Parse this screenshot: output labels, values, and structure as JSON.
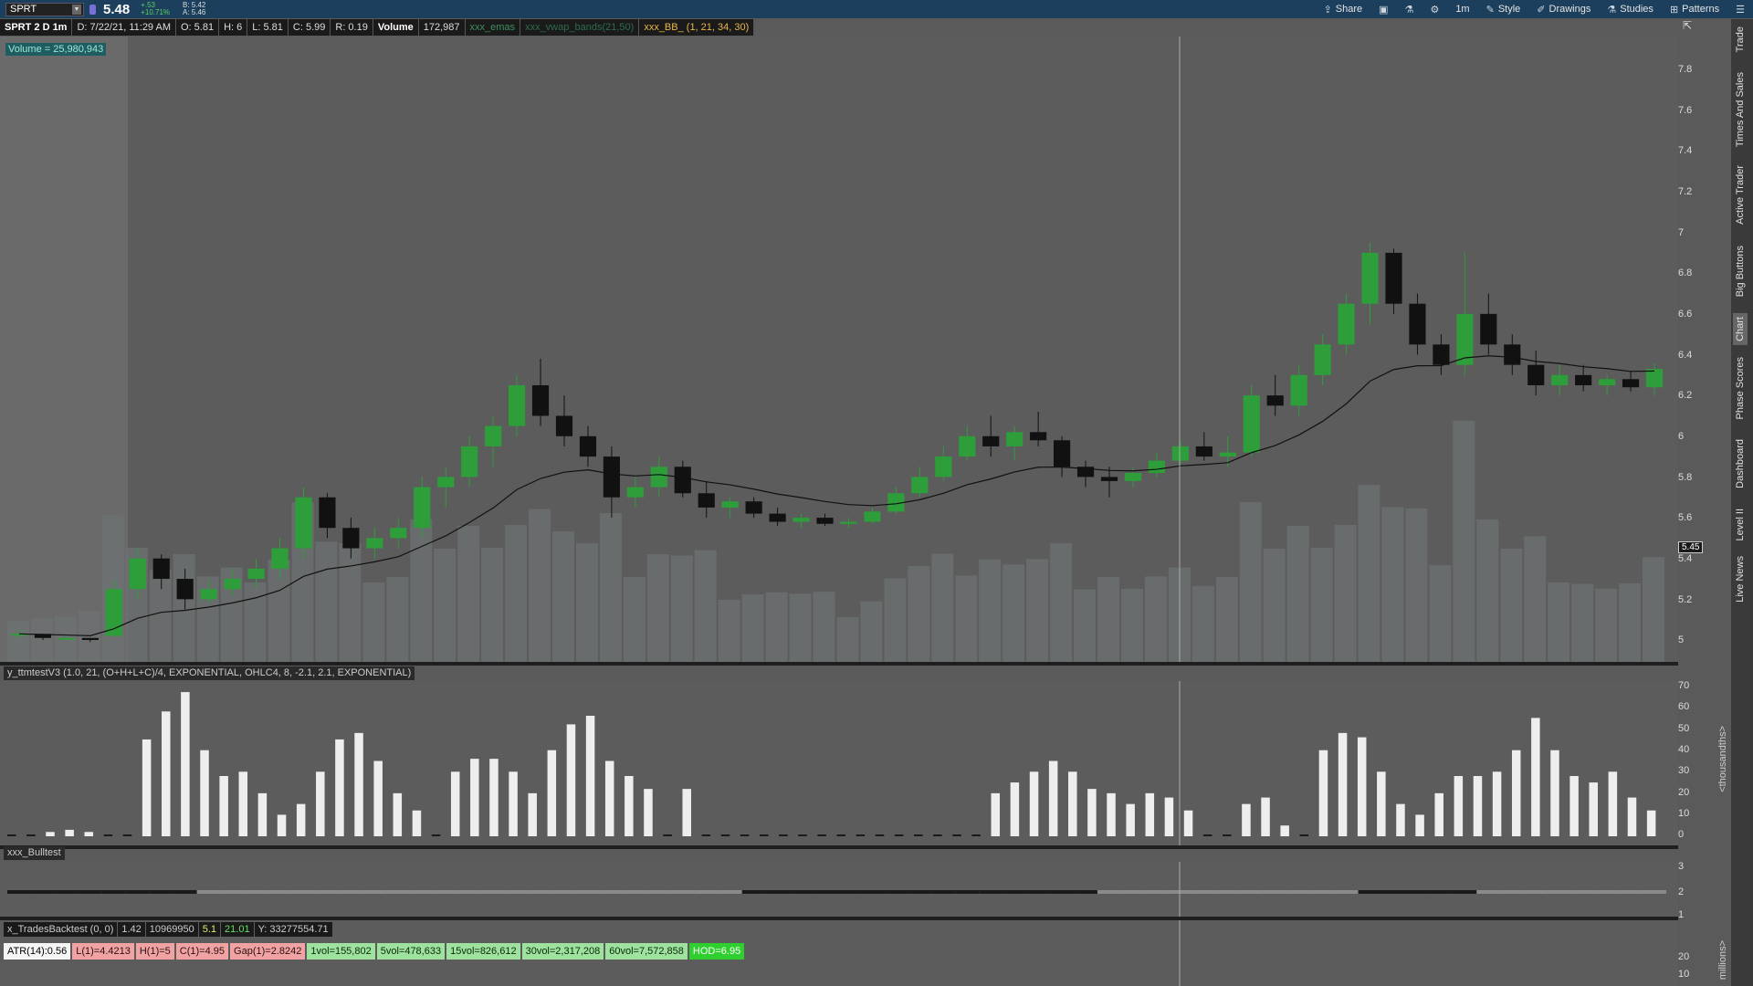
{
  "topbar": {
    "symbol": "SPRT",
    "last_price": "5.48",
    "change_abs": "+.53",
    "change_pct": "+10.71%",
    "bid": "B: 5.42",
    "ask": "A: 5.46",
    "buttons": {
      "share": "Share",
      "timeframe": "1m",
      "style": "Style",
      "drawings": "Drawings",
      "studies": "Studies",
      "patterns": "Patterns"
    }
  },
  "infobar": {
    "title": "SPRT 2 D 1m",
    "date": "D: 7/22/21, 11:29 AM",
    "open": "O: 5.81",
    "high": "H: 6",
    "low": "L: 5.81",
    "close": "C: 5.99",
    "range": "R: 0.19",
    "volume_label": "Volume",
    "volume_value": "172,987",
    "study1": "xxx_emas",
    "study2": "xxx_vwap_bands(21,50)",
    "study3": "xxx_BB_ (1, 21, 34, 30)"
  },
  "volume_box": "Volume = 25,980,943",
  "sidebar_tabs": [
    "Trade",
    "Times And Sales",
    "Active Trader",
    "Big Buttons",
    "Chart",
    "Phase Scores",
    "Dashboard",
    "Level II",
    "Live News"
  ],
  "price_axis": [
    "7.8",
    "7.6",
    "7.4",
    "7.2",
    "7",
    "6.8",
    "6.6",
    "6.4",
    "6.2",
    "6",
    "5.8",
    "5.6",
    "5.4",
    "5.2",
    "5"
  ],
  "current_price_label": "5.45",
  "osc_panel": {
    "header": "y_ttmtestV3 (1.0, 21, (O+H+L+C)/4, EXPONENTIAL, OHLC4, 8, -2.1, 2.1, EXPONENTIAL)",
    "axis": [
      "70",
      "60",
      "50",
      "40",
      "30",
      "20",
      "10",
      "0"
    ],
    "unit": "<thousandths>"
  },
  "bull_panel": {
    "header": "xxx_Bulltest",
    "axis": [
      "3",
      "2",
      "1"
    ]
  },
  "backtest": {
    "header": "x_TradesBacktest (0, 0)",
    "v1": "1.42",
    "v2": "10969950",
    "v3": "5.1",
    "v4": "21.01",
    "v5": "Y: 33277554.71"
  },
  "stats": {
    "atr": "ATR(14):0.56",
    "l1": "L(1)=4.4213",
    "h1": "H(1)=5",
    "c1": "C(1)=4.95",
    "gap": "Gap(1)=2.8242",
    "vol1": "1vol=155,802",
    "vol5": "5vol=478,633",
    "vol15": "15vol=826,612",
    "vol30": "30vol=2,317,208",
    "vol60": "60vol=7,572,858",
    "hod": "HOD=6.95"
  },
  "vol_panel": {
    "axis": [
      "20",
      "10"
    ],
    "unit": "millions>"
  },
  "chart_data": {
    "type": "candlestick",
    "ylim": [
      5.0,
      7.8
    ],
    "candles": [
      [
        5.03,
        5.05,
        5.01,
        5.03
      ],
      [
        5.03,
        5.03,
        5.0,
        5.01
      ],
      [
        5.01,
        5.02,
        5.0,
        5.01
      ],
      [
        5.01,
        5.01,
        4.99,
        5.0
      ],
      [
        5.02,
        5.3,
        5.02,
        5.25
      ],
      [
        5.25,
        5.45,
        5.2,
        5.4
      ],
      [
        5.4,
        5.42,
        5.25,
        5.3
      ],
      [
        5.3,
        5.35,
        5.15,
        5.2
      ],
      [
        5.2,
        5.3,
        5.18,
        5.25
      ],
      [
        5.25,
        5.35,
        5.22,
        5.3
      ],
      [
        5.3,
        5.4,
        5.25,
        5.35
      ],
      [
        5.35,
        5.5,
        5.3,
        5.45
      ],
      [
        5.45,
        5.75,
        5.4,
        5.7
      ],
      [
        5.7,
        5.72,
        5.5,
        5.55
      ],
      [
        5.55,
        5.6,
        5.4,
        5.45
      ],
      [
        5.45,
        5.55,
        5.4,
        5.5
      ],
      [
        5.5,
        5.6,
        5.45,
        5.55
      ],
      [
        5.55,
        5.8,
        5.5,
        5.75
      ],
      [
        5.75,
        5.85,
        5.65,
        5.8
      ],
      [
        5.8,
        6.0,
        5.75,
        5.95
      ],
      [
        5.95,
        6.1,
        5.85,
        6.05
      ],
      [
        6.05,
        6.3,
        6.0,
        6.25
      ],
      [
        6.25,
        6.38,
        6.05,
        6.1
      ],
      [
        6.1,
        6.2,
        5.95,
        6.0
      ],
      [
        6.0,
        6.05,
        5.85,
        5.9
      ],
      [
        5.9,
        5.95,
        5.6,
        5.7
      ],
      [
        5.7,
        5.8,
        5.65,
        5.75
      ],
      [
        5.75,
        5.9,
        5.7,
        5.85
      ],
      [
        5.85,
        5.88,
        5.7,
        5.72
      ],
      [
        5.72,
        5.78,
        5.6,
        5.65
      ],
      [
        5.65,
        5.7,
        5.6,
        5.68
      ],
      [
        5.68,
        5.7,
        5.6,
        5.62
      ],
      [
        5.62,
        5.65,
        5.56,
        5.58
      ],
      [
        5.58,
        5.62,
        5.55,
        5.6
      ],
      [
        5.6,
        5.62,
        5.56,
        5.57
      ],
      [
        5.57,
        5.6,
        5.55,
        5.58
      ],
      [
        5.58,
        5.65,
        5.57,
        5.63
      ],
      [
        5.63,
        5.75,
        5.62,
        5.72
      ],
      [
        5.72,
        5.85,
        5.7,
        5.8
      ],
      [
        5.8,
        5.95,
        5.78,
        5.9
      ],
      [
        5.9,
        6.05,
        5.88,
        6.0
      ],
      [
        6.0,
        6.1,
        5.9,
        5.95
      ],
      [
        5.95,
        6.05,
        5.88,
        6.02
      ],
      [
        6.02,
        6.12,
        5.95,
        5.98
      ],
      [
        5.98,
        6.0,
        5.8,
        5.85
      ],
      [
        5.85,
        5.88,
        5.75,
        5.8
      ],
      [
        5.8,
        5.85,
        5.7,
        5.78
      ],
      [
        5.78,
        5.85,
        5.75,
        5.82
      ],
      [
        5.82,
        5.92,
        5.8,
        5.88
      ],
      [
        5.88,
        5.98,
        5.85,
        5.95
      ],
      [
        5.95,
        6.02,
        5.88,
        5.9
      ],
      [
        5.9,
        6.0,
        5.85,
        5.92
      ],
      [
        5.92,
        6.25,
        5.9,
        6.2
      ],
      [
        6.2,
        6.3,
        6.1,
        6.15
      ],
      [
        6.15,
        6.35,
        6.1,
        6.3
      ],
      [
        6.3,
        6.5,
        6.25,
        6.45
      ],
      [
        6.45,
        6.7,
        6.4,
        6.65
      ],
      [
        6.65,
        6.95,
        6.55,
        6.9
      ],
      [
        6.9,
        6.92,
        6.6,
        6.65
      ],
      [
        6.65,
        6.7,
        6.4,
        6.45
      ],
      [
        6.45,
        6.5,
        6.3,
        6.35
      ],
      [
        6.35,
        6.9,
        6.3,
        6.6
      ],
      [
        6.6,
        6.7,
        6.4,
        6.45
      ],
      [
        6.45,
        6.5,
        6.3,
        6.35
      ],
      [
        6.35,
        6.42,
        6.2,
        6.25
      ],
      [
        6.25,
        6.35,
        6.2,
        6.3
      ],
      [
        6.3,
        6.35,
        6.22,
        6.25
      ],
      [
        6.25,
        6.3,
        6.2,
        6.28
      ],
      [
        6.28,
        6.32,
        6.22,
        6.24
      ],
      [
        6.24,
        6.36,
        6.2,
        6.33
      ]
    ],
    "osc_values": [
      0,
      0,
      2,
      3,
      2,
      0,
      0,
      45,
      58,
      67,
      40,
      28,
      30,
      20,
      10,
      15,
      30,
      45,
      48,
      35,
      20,
      12,
      0,
      30,
      36,
      36,
      30,
      20,
      40,
      52,
      56,
      35,
      28,
      22,
      0,
      22,
      0,
      0,
      0,
      0,
      0,
      0,
      0,
      0,
      0,
      0,
      0,
      0,
      0,
      0,
      0,
      20,
      25,
      30,
      35,
      30,
      22,
      20,
      15,
      20,
      18,
      12,
      0,
      0,
      15,
      18,
      5,
      0,
      40,
      48,
      46,
      30,
      15,
      10,
      20,
      28,
      28,
      30,
      40,
      55,
      40,
      28,
      25,
      30,
      18,
      12
    ],
    "bull_values": [
      2,
      2,
      2,
      2,
      2,
      2,
      2,
      2,
      2,
      2,
      2,
      2,
      2,
      2,
      2,
      2,
      2,
      2,
      2,
      2,
      2,
      2,
      2,
      2,
      2,
      2,
      2,
      2,
      2,
      2,
      2,
      2,
      2,
      2,
      2,
      2,
      2,
      2,
      2,
      2,
      2,
      2,
      2,
      2,
      2,
      2,
      2,
      2,
      2,
      2,
      2,
      2,
      2,
      2,
      2,
      2,
      2,
      2,
      2,
      2,
      2,
      2,
      2,
      2,
      2,
      2,
      2,
      2,
      2,
      2
    ]
  }
}
